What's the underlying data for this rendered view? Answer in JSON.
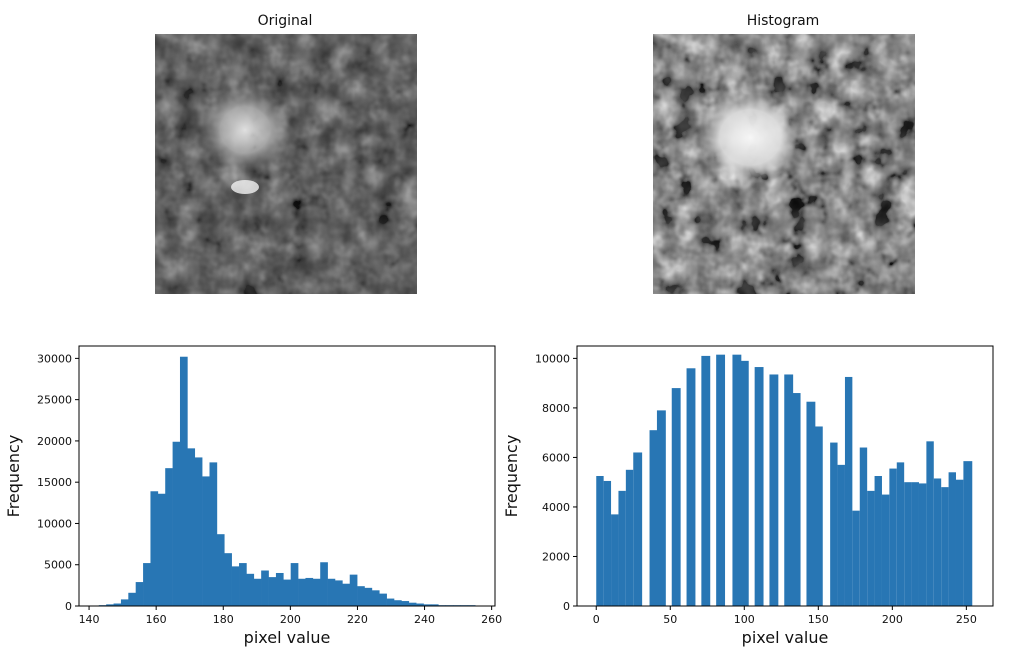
{
  "images": [
    {
      "title": "Original",
      "description": "grayscale noisy texture with bright central blob"
    },
    {
      "title": "Histogram",
      "description": "contrast-stretched grayscale texture with bright central blob"
    }
  ],
  "chart_data": [
    {
      "type": "bar",
      "xlabel": "pixel value",
      "ylabel": "Frequency",
      "xlim": [
        137,
        261
      ],
      "ylim": [
        0,
        31500
      ],
      "xticks": [
        140,
        160,
        180,
        200,
        220,
        240,
        260
      ],
      "yticks": [
        0,
        5000,
        10000,
        15000,
        20000,
        25000,
        30000
      ],
      "bin_width": 2.2,
      "color": "#2876b4",
      "x": [
        144.0,
        146.2,
        148.4,
        150.6,
        152.8,
        155.0,
        157.2,
        159.4,
        161.6,
        163.8,
        166.0,
        168.2,
        170.4,
        172.6,
        174.8,
        177.0,
        179.2,
        181.4,
        183.6,
        185.8,
        188.0,
        190.2,
        192.4,
        194.6,
        196.8,
        199.0,
        201.2,
        203.4,
        205.6,
        207.8,
        210.0,
        212.2,
        214.4,
        216.6,
        218.8,
        221.0,
        223.2,
        225.4,
        227.6,
        229.8,
        232.0,
        234.2,
        236.4,
        238.6,
        240.8,
        243.0,
        245.2,
        247.4,
        249.6,
        251.8,
        254.0
      ],
      "values": [
        100,
        200,
        300,
        800,
        1600,
        2900,
        5200,
        13900,
        13600,
        16700,
        19900,
        30200,
        19100,
        18000,
        15700,
        17400,
        8700,
        6400,
        4800,
        5200,
        3900,
        3300,
        4300,
        3500,
        4000,
        3200,
        5200,
        3300,
        3400,
        3300,
        5300,
        3300,
        3100,
        2700,
        3800,
        2400,
        2200,
        1900,
        1500,
        900,
        700,
        600,
        400,
        300,
        200,
        200,
        100,
        100,
        100,
        100,
        100
      ]
    },
    {
      "type": "bar",
      "xlabel": "pixel value",
      "ylabel": "Frequency",
      "xlim": [
        -13,
        268
      ],
      "ylim": [
        0,
        10500
      ],
      "xticks": [
        0,
        50,
        100,
        150,
        200,
        250
      ],
      "yticks": [
        0,
        2000,
        4000,
        6000,
        8000,
        10000
      ],
      "color": "#2876b4",
      "bins": [
        [
          0,
          5,
          5250
        ],
        [
          5,
          10,
          5050
        ],
        [
          10,
          15,
          3700
        ],
        [
          15,
          20,
          4650
        ],
        [
          20,
          25,
          5500
        ],
        [
          25,
          31,
          6200
        ],
        [
          36,
          42,
          7100
        ],
        [
          41,
          47,
          7900
        ],
        [
          51,
          57,
          8800
        ],
        [
          61,
          67,
          9600
        ],
        [
          71,
          77,
          10100
        ],
        [
          81,
          87,
          10150
        ],
        [
          92,
          98,
          10150
        ],
        [
          97,
          103,
          9900
        ],
        [
          107,
          113,
          9650
        ],
        [
          117,
          123,
          9350
        ],
        [
          127,
          133,
          9350
        ],
        [
          132,
          138,
          8600
        ],
        [
          142,
          148,
          8250
        ],
        [
          147,
          153,
          7250
        ],
        [
          158,
          163,
          6600
        ],
        [
          163,
          168,
          5700
        ],
        [
          168,
          173,
          9250
        ],
        [
          173,
          178,
          3850
        ],
        [
          178,
          183,
          6400
        ],
        [
          183,
          188,
          4650
        ],
        [
          188,
          193,
          5250
        ],
        [
          193,
          198,
          4500
        ],
        [
          198,
          203,
          5550
        ],
        [
          203,
          208,
          5800
        ],
        [
          208,
          213,
          5000
        ],
        [
          213,
          218,
          5000
        ],
        [
          218,
          223,
          4950
        ],
        [
          223,
          228,
          6650
        ],
        [
          228,
          233,
          5150
        ],
        [
          233,
          238,
          4800
        ],
        [
          238,
          243,
          5400
        ],
        [
          243,
          248,
          5100
        ],
        [
          248,
          254,
          5850
        ]
      ]
    }
  ]
}
